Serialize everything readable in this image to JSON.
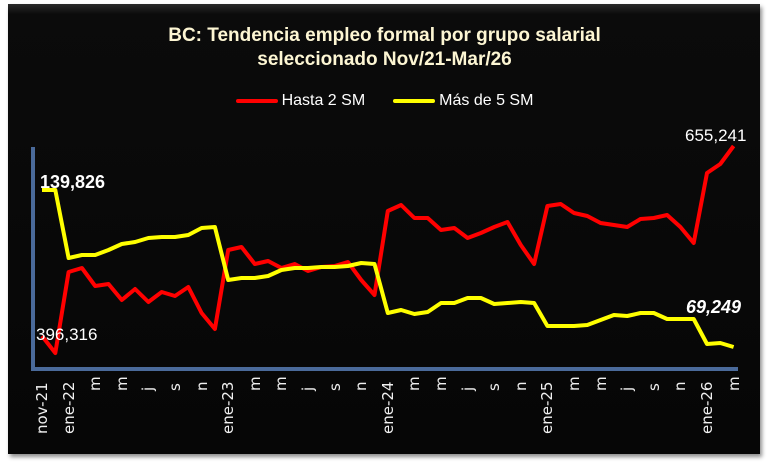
{
  "title_line1": "BC: Tendencia empleo formal por grupo salarial",
  "title_line2": "seleccionado Nov/21-Mar/26",
  "legend": [
    {
      "label": "Hasta 2 SM",
      "color": "#ff0000"
    },
    {
      "label": "Más de 5 SM",
      "color": "#ffff00"
    }
  ],
  "annotations": {
    "red_first": "396,316",
    "red_last": "655,241",
    "yellow_first": "139,826",
    "yellow_last": "69,249"
  },
  "colors": {
    "background": "#060606",
    "axis": "#4a6a9a",
    "text": "#ffffff",
    "title": "#fdf6d3"
  },
  "chart_data": {
    "type": "line",
    "title": "BC: Tendencia empleo formal por grupo salarial seleccionado Nov/21-Mar/26",
    "xlabel": "",
    "ylabel": "",
    "grid": false,
    "legend_position": "top",
    "dual_axis": true,
    "x": [
      "nov-21",
      "dic-21",
      "ene-22",
      "feb-22",
      "mar-22",
      "abr-22",
      "may-22",
      "jun-22",
      "jul-22",
      "ago-22",
      "sep-22",
      "oct-22",
      "nov-22",
      "dic-22",
      "ene-23",
      "feb-23",
      "mar-23",
      "abr-23",
      "may-23",
      "jun-23",
      "jul-23",
      "ago-23",
      "sep-23",
      "oct-23",
      "nov-23",
      "dic-23",
      "ene-24",
      "feb-24",
      "mar-24",
      "abr-24",
      "may-24",
      "jun-24",
      "jul-24",
      "ago-24",
      "sep-24",
      "oct-24",
      "nov-24",
      "dic-24",
      "ene-25",
      "feb-25",
      "mar-25",
      "abr-25",
      "may-25",
      "jun-25",
      "jul-25",
      "ago-25",
      "sep-25",
      "oct-25",
      "nov-25",
      "dic-25",
      "ene-26",
      "feb-26",
      "mar-26"
    ],
    "tick_labels": [
      "nov-21",
      "",
      "ene-22",
      "",
      "m",
      "",
      "m",
      "",
      "j",
      "",
      "s",
      "",
      "n",
      "",
      "ene-23",
      "",
      "m",
      "",
      "m",
      "",
      "j",
      "",
      "s",
      "",
      "n",
      "",
      "ene-24",
      "",
      "m",
      "",
      "m",
      "",
      "j",
      "",
      "s",
      "",
      "n",
      "",
      "ene-25",
      "",
      "m",
      "",
      "m",
      "",
      "j",
      "",
      "s",
      "",
      "n",
      "",
      "ene-26",
      "",
      "m"
    ],
    "series": [
      {
        "name": "Hasta 2 SM",
        "color": "#ff0000",
        "axis": "primary",
        "values": [
          396316,
          373148,
          483535,
          488986,
          464456,
          467182,
          445377,
          460368,
          442651,
          456279,
          450828,
          463093,
          427660,
          405856,
          513517,
          517605,
          494438,
          498526,
          488986,
          494438,
          484898,
          490349,
          491712,
          497163,
          472633,
          452191,
          566666,
          574843,
          557126,
          557126,
          540772,
          543498,
          529870,
          536684,
          544860,
          551674,
          520331,
          494438,
          573480,
          576206,
          563941,
          559852,
          550312,
          547586,
          544860,
          555764,
          557126,
          561215,
          544860,
          523056,
          618452,
          630718,
          655241
        ]
      },
      {
        "name": "Más de 5 SM",
        "color": "#ffff00",
        "axis": "secondary",
        "values": [
          139826,
          139826,
          109260,
          110609,
          110609,
          112856,
          115553,
          116452,
          118250,
          118700,
          118700,
          119599,
          122745,
          123195,
          99371,
          100270,
          100270,
          101169,
          103866,
          104765,
          104765,
          105215,
          105215,
          105664,
          107013,
          106563,
          84537,
          85886,
          84088,
          84987,
          89033,
          89033,
          91280,
          91280,
          88583,
          89033,
          89482,
          89033,
          78694,
          78694,
          78694,
          79144,
          81391,
          83639,
          83189,
          84537,
          84537,
          81841,
          81841,
          81841,
          70603,
          71053,
          69249
        ]
      }
    ]
  }
}
